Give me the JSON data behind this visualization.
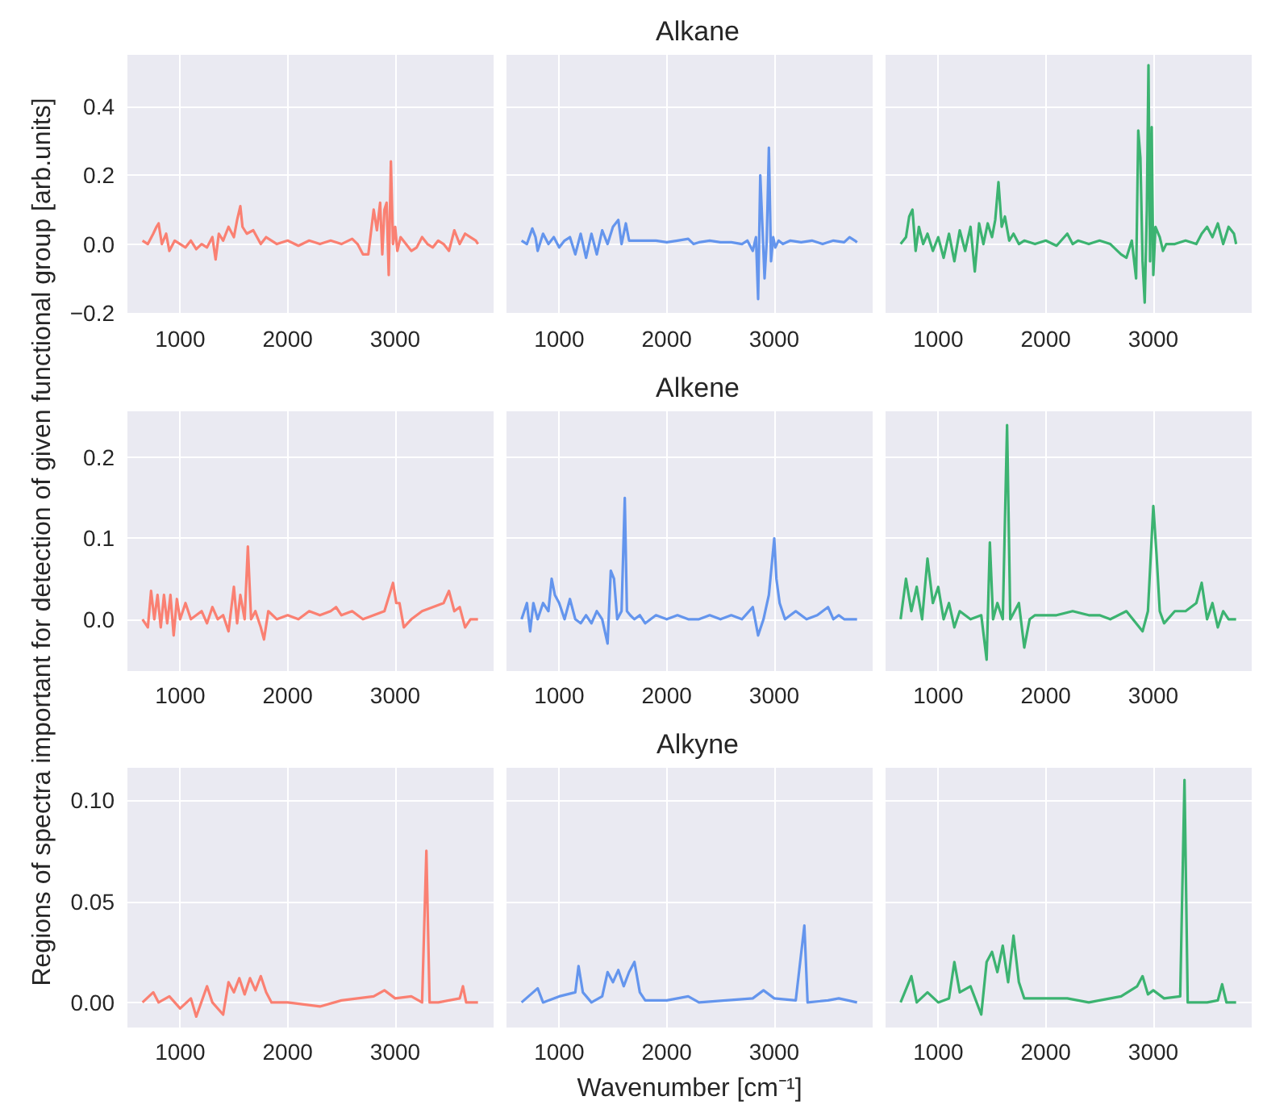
{
  "chart_data": [
    {
      "type": "line",
      "grid": true,
      "xlim": [
        510,
        3915
      ],
      "ylim": [
        -0.205,
        0.55
      ],
      "xticks": [
        1000,
        2000,
        3000
      ],
      "yticks": [
        {
          "value": -0.2,
          "label": "−0.2"
        },
        {
          "value": 0,
          "label": "0.0"
        },
        0.2,
        0.4
      ],
      "x": [
        650,
        700,
        750,
        780,
        800,
        830,
        870,
        900,
        950,
        1000,
        1050,
        1100,
        1150,
        1200,
        1250,
        1300,
        1330,
        1360,
        1400,
        1450,
        1500,
        1530,
        1560,
        1580,
        1620,
        1680,
        1750,
        1800,
        1850,
        1900,
        2000,
        2100,
        2200,
        2300,
        2400,
        2500,
        2600,
        2650,
        2700,
        2750,
        2800,
        2830,
        2860,
        2880,
        2900,
        2920,
        2940,
        2960,
        2980,
        3000,
        3020,
        3050,
        3100,
        3150,
        3200,
        3250,
        3300,
        3350,
        3400,
        3450,
        3500,
        3550,
        3600,
        3650,
        3700,
        3750,
        3770
      ],
      "series": [
        {
          "color": "#fa8072",
          "values": [
            0.01,
            0.0,
            0.03,
            0.05,
            0.06,
            0.0,
            0.03,
            -0.02,
            0.01,
            0.0,
            -0.01,
            0.01,
            -0.015,
            0.0,
            -0.01,
            0.02,
            -0.045,
            0.03,
            0.01,
            0.05,
            0.02,
            0.07,
            0.11,
            0.05,
            0.03,
            0.04,
            0.0,
            0.02,
            0.01,
            0.0,
            0.01,
            -0.005,
            0.01,
            0.0,
            0.01,
            0.0,
            0.015,
            0.0,
            -0.03,
            -0.03,
            0.1,
            0.04,
            0.12,
            -0.03,
            0.1,
            0.12,
            -0.09,
            0.24,
            0.0,
            0.05,
            -0.02,
            0.02,
            0.0,
            -0.02,
            -0.01,
            0.02,
            0.0,
            -0.01,
            0.01,
            0.0,
            -0.02,
            0.04,
            0.0,
            0.03,
            0.02,
            0.01,
            0.0
          ]
        }
      ]
    },
    {
      "type": "line",
      "title": "Alkane",
      "grid": true,
      "tick_labels": "x",
      "xlim": [
        510,
        3915
      ],
      "ylim": [
        -0.205,
        0.55
      ],
      "xticks": [
        1000,
        2000,
        3000
      ],
      "yticks": [
        -0.2,
        0,
        0.2,
        0.4
      ],
      "x": [
        650,
        700,
        750,
        780,
        800,
        850,
        900,
        950,
        1000,
        1050,
        1100,
        1150,
        1200,
        1250,
        1300,
        1350,
        1400,
        1450,
        1500,
        1550,
        1580,
        1620,
        1650,
        1700,
        1800,
        1900,
        2000,
        2100,
        2200,
        2250,
        2300,
        2400,
        2500,
        2600,
        2700,
        2750,
        2800,
        2830,
        2850,
        2870,
        2890,
        2910,
        2930,
        2950,
        2970,
        2990,
        3010,
        3040,
        3080,
        3150,
        3250,
        3350,
        3450,
        3550,
        3650,
        3700,
        3750,
        3770
      ],
      "series": [
        {
          "color": "#6495ed",
          "values": [
            0.01,
            0.0,
            0.045,
            0.02,
            -0.02,
            0.03,
            0.0,
            0.02,
            -0.01,
            0.01,
            0.02,
            -0.03,
            0.03,
            -0.04,
            0.03,
            -0.03,
            0.04,
            0.0,
            0.05,
            0.07,
            0.0,
            0.06,
            0.01,
            0.01,
            0.01,
            0.01,
            0.005,
            0.01,
            0.015,
            0.0,
            0.005,
            0.01,
            0.005,
            0.005,
            0.0,
            0.01,
            -0.02,
            0.02,
            -0.16,
            0.2,
            0.05,
            -0.1,
            0.01,
            0.28,
            -0.05,
            0.02,
            -0.01,
            0.01,
            0.0,
            0.01,
            0.005,
            0.01,
            0.0,
            0.01,
            0.005,
            0.02,
            0.01,
            0.005
          ]
        }
      ]
    },
    {
      "type": "line",
      "grid": true,
      "tick_labels": "x",
      "xlim": [
        510,
        3915
      ],
      "ylim": [
        -0.205,
        0.55
      ],
      "xticks": [
        1000,
        2000,
        3000
      ],
      "yticks": [
        -0.2,
        0,
        0.2,
        0.4
      ],
      "x": [
        650,
        700,
        730,
        760,
        790,
        820,
        860,
        900,
        950,
        1000,
        1050,
        1100,
        1150,
        1200,
        1250,
        1300,
        1340,
        1380,
        1420,
        1460,
        1500,
        1530,
        1560,
        1590,
        1620,
        1660,
        1700,
        1750,
        1800,
        1900,
        2000,
        2100,
        2200,
        2250,
        2300,
        2400,
        2500,
        2600,
        2700,
        2750,
        2800,
        2840,
        2860,
        2880,
        2900,
        2920,
        2940,
        2955,
        2970,
        2985,
        3000,
        3020,
        3060,
        3090,
        3120,
        3200,
        3300,
        3400,
        3450,
        3500,
        3550,
        3600,
        3650,
        3700,
        3750,
        3770
      ],
      "series": [
        {
          "color": "#3cb371",
          "values": [
            0.0,
            0.02,
            0.08,
            0.1,
            -0.02,
            0.05,
            0.0,
            0.03,
            -0.02,
            0.02,
            -0.04,
            0.03,
            -0.05,
            0.04,
            -0.02,
            0.05,
            -0.08,
            0.06,
            0.0,
            0.06,
            0.02,
            0.07,
            0.18,
            0.05,
            0.08,
            0.01,
            0.03,
            0.0,
            0.01,
            0.0,
            0.01,
            -0.005,
            0.03,
            0.0,
            0.01,
            0.0,
            0.01,
            0.0,
            -0.03,
            -0.04,
            0.01,
            -0.1,
            0.33,
            0.25,
            -0.05,
            -0.17,
            0.1,
            0.52,
            -0.05,
            0.34,
            -0.09,
            0.05,
            0.02,
            -0.02,
            0.0,
            0.0,
            0.01,
            0.0,
            0.03,
            0.05,
            0.02,
            0.06,
            0.0,
            0.05,
            0.03,
            0.0
          ]
        }
      ]
    },
    {
      "type": "line",
      "ylabel": "Regions of spectra important for detection of given functional group [arb.units]",
      "grid": true,
      "xlim": [
        510,
        3915
      ],
      "ylim": [
        -0.064,
        0.257
      ],
      "xticks": [
        1000,
        2000,
        3000
      ],
      "yticks": [
        {
          "value": 0,
          "label": "0.0"
        },
        0.1,
        0.2
      ],
      "x": [
        650,
        700,
        730,
        760,
        790,
        820,
        850,
        880,
        910,
        940,
        970,
        1000,
        1050,
        1100,
        1150,
        1200,
        1250,
        1300,
        1350,
        1400,
        1450,
        1500,
        1530,
        1560,
        1600,
        1630,
        1660,
        1700,
        1750,
        1780,
        1820,
        1900,
        2000,
        2100,
        2200,
        2300,
        2400,
        2450,
        2500,
        2600,
        2700,
        2800,
        2900,
        2980,
        3010,
        3040,
        3080,
        3150,
        3250,
        3350,
        3450,
        3500,
        3550,
        3600,
        3650,
        3700,
        3770
      ],
      "series": [
        {
          "color": "#fa8072",
          "values": [
            0.0,
            -0.01,
            0.035,
            0.0,
            0.03,
            -0.01,
            0.03,
            -0.005,
            0.03,
            -0.02,
            0.025,
            0.0,
            0.02,
            0.0,
            0.005,
            0.01,
            -0.005,
            0.015,
            0.0,
            0.005,
            -0.015,
            0.04,
            -0.005,
            0.03,
            0.0,
            0.09,
            0.0,
            0.01,
            -0.01,
            -0.025,
            0.01,
            0.0,
            0.005,
            0.0,
            0.01,
            0.005,
            0.01,
            0.015,
            0.005,
            0.01,
            0.0,
            0.005,
            0.01,
            0.045,
            0.02,
            0.02,
            -0.01,
            0.0,
            0.01,
            0.015,
            0.02,
            0.035,
            0.01,
            0.015,
            -0.01,
            0.0,
            0.0
          ]
        }
      ]
    },
    {
      "type": "line",
      "title": "Alkene",
      "grid": true,
      "tick_labels": "x",
      "xlim": [
        510,
        3915
      ],
      "ylim": [
        -0.064,
        0.257
      ],
      "xticks": [
        1000,
        2000,
        3000
      ],
      "yticks": [
        0,
        0.1,
        0.2
      ],
      "x": [
        650,
        700,
        730,
        760,
        800,
        850,
        900,
        930,
        960,
        1000,
        1050,
        1100,
        1150,
        1200,
        1250,
        1300,
        1350,
        1400,
        1450,
        1480,
        1510,
        1540,
        1580,
        1610,
        1630,
        1660,
        1700,
        1750,
        1800,
        1900,
        2000,
        2100,
        2200,
        2300,
        2400,
        2500,
        2600,
        2700,
        2800,
        2850,
        2900,
        2950,
        3000,
        3020,
        3050,
        3100,
        3150,
        3200,
        3300,
        3400,
        3500,
        3550,
        3600,
        3650,
        3700,
        3770
      ],
      "series": [
        {
          "color": "#6495ed",
          "values": [
            0.0,
            0.02,
            -0.015,
            0.02,
            0.0,
            0.02,
            0.01,
            0.05,
            0.03,
            0.02,
            0.0,
            0.025,
            0.0,
            -0.005,
            0.005,
            -0.005,
            0.01,
            0.0,
            -0.03,
            0.06,
            0.05,
            0.0,
            0.01,
            0.15,
            0.01,
            0.005,
            0.0,
            0.005,
            -0.005,
            0.005,
            0.0,
            0.005,
            0.0,
            0.0,
            0.005,
            0.0,
            0.005,
            0.0,
            0.015,
            -0.02,
            0.0,
            0.03,
            0.1,
            0.05,
            0.02,
            0.0,
            0.005,
            0.01,
            0.0,
            0.005,
            0.015,
            0.0,
            0.005,
            0.0,
            0.0,
            0.0
          ]
        }
      ]
    },
    {
      "type": "line",
      "grid": true,
      "tick_labels": "x",
      "xlim": [
        510,
        3915
      ],
      "ylim": [
        -0.064,
        0.257
      ],
      "xticks": [
        1000,
        2000,
        3000
      ],
      "yticks": [
        0,
        0.1,
        0.2
      ],
      "x": [
        650,
        700,
        750,
        800,
        850,
        900,
        950,
        1000,
        1050,
        1100,
        1150,
        1200,
        1300,
        1400,
        1450,
        1480,
        1510,
        1550,
        1600,
        1640,
        1670,
        1750,
        1800,
        1850,
        1900,
        2000,
        2100,
        2250,
        2400,
        2500,
        2600,
        2750,
        2900,
        2950,
        3000,
        3030,
        3060,
        3100,
        3200,
        3300,
        3400,
        3450,
        3500,
        3550,
        3600,
        3650,
        3700,
        3770
      ],
      "series": [
        {
          "color": "#3cb371",
          "values": [
            0.0,
            0.05,
            0.01,
            0.04,
            0.0,
            0.075,
            0.02,
            0.04,
            0.0,
            0.02,
            -0.01,
            0.01,
            0.0,
            0.005,
            -0.05,
            0.095,
            0.0,
            0.02,
            0.0,
            0.24,
            0.0,
            0.02,
            -0.035,
            0.0,
            0.005,
            0.005,
            0.005,
            0.01,
            0.005,
            0.005,
            0.0,
            0.01,
            -0.015,
            0.01,
            0.14,
            0.08,
            0.01,
            -0.005,
            0.01,
            0.01,
            0.02,
            0.045,
            0.0,
            0.02,
            -0.01,
            0.01,
            0.0,
            0.0
          ]
        }
      ]
    },
    {
      "type": "line",
      "grid": true,
      "xlim": [
        510,
        3915
      ],
      "ylim": [
        -0.0124,
        0.116
      ],
      "xticks": [
        1000,
        2000,
        3000
      ],
      "yticks": [
        {
          "value": 0,
          "label": "0.00"
        },
        {
          "value": 0.05,
          "label": "0.05"
        },
        {
          "value": 0.1,
          "label": "0.10"
        }
      ],
      "x": [
        650,
        750,
        800,
        900,
        1000,
        1100,
        1150,
        1250,
        1300,
        1400,
        1450,
        1500,
        1550,
        1600,
        1650,
        1700,
        1750,
        1800,
        1850,
        2000,
        2300,
        2500,
        2800,
        2900,
        3000,
        3150,
        3250,
        3290,
        3320,
        3400,
        3600,
        3630,
        3660,
        3770
      ],
      "series": [
        {
          "color": "#fa8072",
          "values": [
            0.0,
            0.005,
            0.0,
            0.003,
            -0.003,
            0.002,
            -0.007,
            0.008,
            0.0,
            -0.006,
            0.01,
            0.005,
            0.012,
            0.004,
            0.012,
            0.006,
            0.013,
            0.005,
            0.0,
            0.0,
            -0.002,
            0.001,
            0.003,
            0.006,
            0.002,
            0.003,
            0.0,
            0.075,
            0.0,
            0.0,
            0.002,
            0.008,
            0.0,
            0.0
          ]
        }
      ]
    },
    {
      "type": "line",
      "title": "Alkyne",
      "xlabel": "Wavenumber [cm⁻¹]",
      "grid": true,
      "tick_labels": "x",
      "xlim": [
        510,
        3915
      ],
      "ylim": [
        -0.0124,
        0.116
      ],
      "xticks": [
        1000,
        2000,
        3000
      ],
      "yticks": [
        0,
        0.05,
        0.1
      ],
      "x": [
        650,
        800,
        850,
        1000,
        1150,
        1180,
        1220,
        1300,
        1400,
        1450,
        1500,
        1550,
        1600,
        1650,
        1700,
        1750,
        1800,
        2000,
        2200,
        2300,
        2800,
        2900,
        3000,
        3200,
        3280,
        3310,
        3500,
        3600,
        3770
      ],
      "series": [
        {
          "color": "#6495ed",
          "values": [
            0.0,
            0.007,
            0.0,
            0.003,
            0.005,
            0.018,
            0.005,
            0.0,
            0.003,
            0.015,
            0.01,
            0.016,
            0.008,
            0.015,
            0.02,
            0.005,
            0.001,
            0.001,
            0.003,
            0.0,
            0.002,
            0.006,
            0.002,
            0.001,
            0.038,
            0.0,
            0.001,
            0.002,
            0.0
          ]
        }
      ]
    },
    {
      "type": "line",
      "grid": true,
      "tick_labels": "x",
      "xlim": [
        510,
        3915
      ],
      "ylim": [
        -0.0124,
        0.116
      ],
      "xticks": [
        1000,
        2000,
        3000
      ],
      "yticks": [
        0,
        0.05,
        0.1
      ],
      "x": [
        650,
        750,
        800,
        900,
        1000,
        1100,
        1150,
        1200,
        1300,
        1400,
        1450,
        1500,
        1550,
        1600,
        1650,
        1700,
        1750,
        1800,
        2000,
        2200,
        2400,
        2700,
        2850,
        2900,
        2950,
        3000,
        3100,
        3250,
        3290,
        3320,
        3500,
        3600,
        3640,
        3680,
        3770
      ],
      "series": [
        {
          "color": "#3cb371",
          "values": [
            0.0,
            0.013,
            0.0,
            0.005,
            0.0,
            0.002,
            0.02,
            0.005,
            0.008,
            -0.006,
            0.02,
            0.025,
            0.015,
            0.028,
            0.01,
            0.033,
            0.01,
            0.002,
            0.002,
            0.002,
            0.0,
            0.003,
            0.008,
            0.013,
            0.004,
            0.006,
            0.002,
            0.003,
            0.11,
            0.0,
            0.0,
            0.001,
            0.009,
            0.0,
            0.0
          ]
        }
      ]
    }
  ]
}
